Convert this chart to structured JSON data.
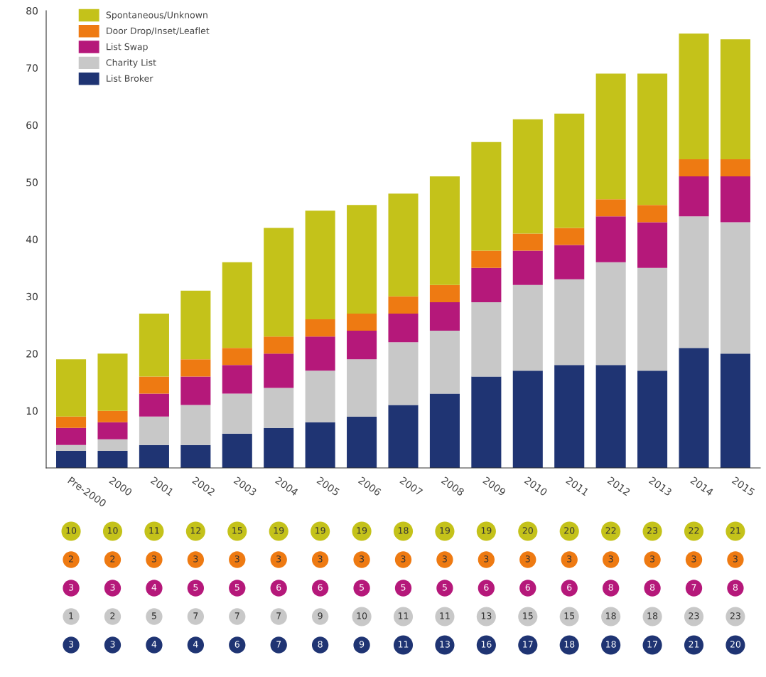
{
  "chart_data": {
    "type": "bar",
    "stacked": true,
    "categories": [
      "Pre-2000",
      "2000",
      "2001",
      "2002",
      "2003",
      "2004",
      "2005",
      "2006",
      "2007",
      "2008",
      "2009",
      "2010",
      "2011",
      "2012",
      "2013",
      "2014",
      "2015"
    ],
    "series": [
      {
        "name": "List Broker",
        "color": "#1f3473",
        "values": [
          3,
          3,
          4,
          4,
          6,
          7,
          8,
          9,
          11,
          13,
          16,
          17,
          18,
          18,
          17,
          21,
          20
        ]
      },
      {
        "name": "Charity List",
        "color": "#c8c8c8",
        "values": [
          1,
          2,
          5,
          7,
          7,
          7,
          9,
          10,
          11,
          11,
          13,
          15,
          15,
          18,
          18,
          23,
          23
        ]
      },
      {
        "name": "List Swap",
        "color": "#b5187a",
        "values": [
          3,
          3,
          4,
          5,
          5,
          6,
          6,
          5,
          5,
          5,
          6,
          6,
          6,
          8,
          8,
          7,
          8
        ]
      },
      {
        "name": "Door Drop/Inset/Leaflet",
        "color": "#ee7a12",
        "values": [
          2,
          2,
          3,
          3,
          3,
          3,
          3,
          3,
          3,
          3,
          3,
          3,
          3,
          3,
          3,
          3,
          3
        ]
      },
      {
        "name": "Spontaneous/Unknown",
        "color": "#c4c21a",
        "values": [
          10,
          10,
          11,
          12,
          15,
          19,
          19,
          19,
          18,
          19,
          19,
          20,
          20,
          22,
          23,
          22,
          21
        ]
      }
    ],
    "ylim": [
      0,
      80
    ],
    "yticks": [
      10,
      20,
      30,
      40,
      50,
      60,
      70,
      80
    ],
    "grid": false,
    "legend": "top left",
    "data_labels": true
  }
}
